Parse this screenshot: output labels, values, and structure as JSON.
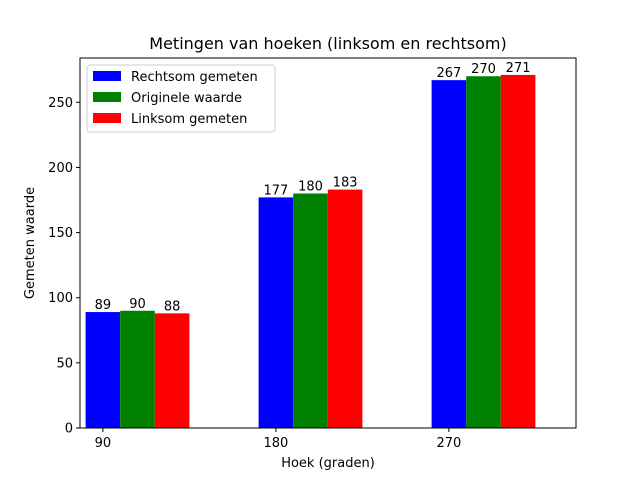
{
  "chart_data": {
    "type": "bar",
    "title": "Metingen van hoeken (linksom en rechtsom)",
    "xlabel": "Hoek (graden)",
    "ylabel": "Gemeten waarde",
    "categories": [
      "90",
      "180",
      "270"
    ],
    "series": [
      {
        "name": "Rechtsom gemeten",
        "color": "#0000ff",
        "values": [
          89,
          177,
          267
        ]
      },
      {
        "name": "Originele waarde",
        "color": "#008000",
        "values": [
          90,
          180,
          270
        ]
      },
      {
        "name": "Linksom gemeten",
        "color": "#ff0000",
        "values": [
          88,
          183,
          271
        ]
      }
    ],
    "ylim": [
      0,
      284
    ],
    "yticks": [
      "0",
      "50",
      "100",
      "150",
      "200",
      "250"
    ],
    "legend_position": "top-left",
    "grid": false
  }
}
